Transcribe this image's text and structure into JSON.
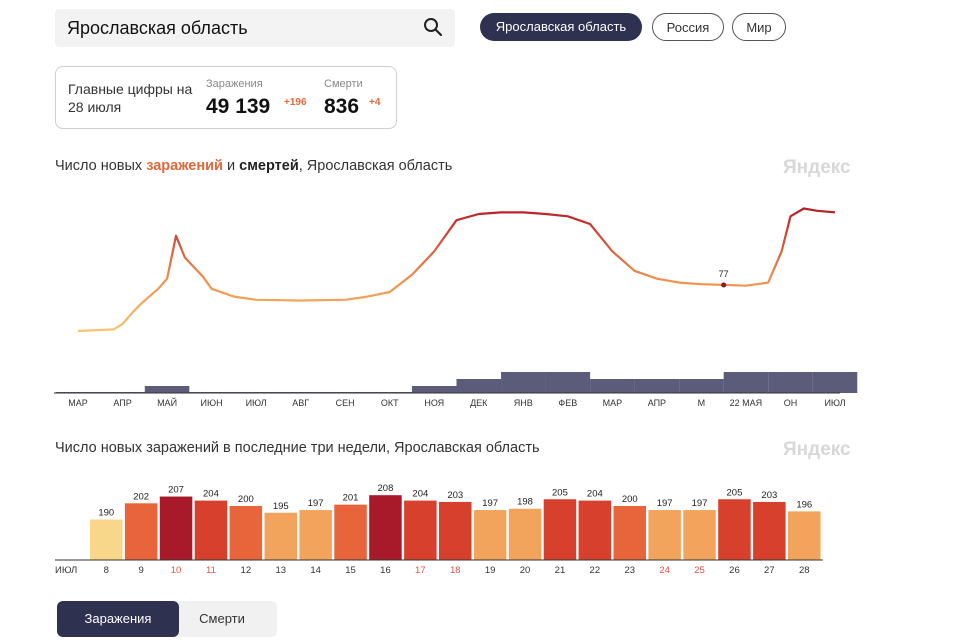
{
  "search": {
    "value": "Ярославская область"
  },
  "region_tabs": [
    {
      "label": "Ярославская область"
    },
    {
      "label": "Россия"
    },
    {
      "label": "Мир"
    }
  ],
  "summary": {
    "title": "Главные цифры на 28 июля",
    "infections_label": "Заражения",
    "infections_value": "49 139",
    "infections_delta": "+196",
    "deaths_label": "Смерти",
    "deaths_value": "836",
    "deaths_delta": "+4"
  },
  "watermark": "Яндекс",
  "chart_data": [
    {
      "type": "line",
      "title_parts": [
        "Число новых ",
        "заражений",
        " и ",
        "смертей",
        ", Ярославская область"
      ],
      "x_tick_labels": [
        "МАР",
        "АПР",
        "МАЙ",
        "ИЮН",
        "ИЮЛ",
        "АВГ",
        "СЕН",
        "ОКТ",
        "НОЯ",
        "ДЕК",
        "ЯНВ",
        "ФЕВ",
        "МАР",
        "АПР",
        "М",
        "22 МАЯ",
        "ОН",
        "ИЮЛ"
      ],
      "annotation": {
        "label": "77",
        "x_month_index": 14.5,
        "value": 77
      },
      "series": [
        {
          "name": "заражений",
          "x_month_index": [
            0.0,
            0.8,
            1.0,
            1.2,
            1.4,
            1.6,
            1.8,
            2.0,
            2.2,
            2.4,
            2.6,
            2.8,
            3.0,
            3.5,
            4.0,
            5.0,
            6.0,
            6.5,
            7.0,
            7.5,
            8.0,
            8.5,
            9.0,
            9.5,
            10.0,
            10.5,
            11.0,
            11.5,
            12.0,
            12.5,
            13.0,
            13.5,
            14.0,
            14.5,
            15.0,
            15.5,
            15.8,
            16.0,
            16.3,
            16.6,
            17.0
          ],
          "values": [
            18,
            20,
            27,
            40,
            52,
            62,
            72,
            85,
            140,
            112,
            100,
            88,
            72,
            62,
            58,
            57,
            58,
            62,
            68,
            90,
            120,
            160,
            168,
            170,
            170,
            168,
            165,
            155,
            120,
            95,
            85,
            80,
            78,
            77,
            76,
            80,
            120,
            165,
            175,
            172,
            170
          ]
        },
        {
          "name": "смертей",
          "x_month_index": [
            0,
            1,
            2,
            3,
            4,
            5,
            6,
            7,
            8,
            9,
            10,
            11,
            12,
            13,
            14,
            15,
            16,
            17
          ],
          "values": [
            0,
            0,
            1,
            0,
            0,
            0,
            0,
            0,
            1,
            2,
            3,
            3,
            2,
            2,
            2,
            3,
            3,
            3
          ]
        }
      ]
    },
    {
      "type": "bar",
      "title": "Число новых заражений в последние три недели, Ярославская область",
      "month_label": "ИЮЛ",
      "categories": [
        "8",
        "9",
        "10",
        "11",
        "12",
        "13",
        "14",
        "15",
        "16",
        "17",
        "18",
        "19",
        "20",
        "21",
        "22",
        "23",
        "24",
        "25",
        "26",
        "27",
        "28"
      ],
      "values": [
        190,
        202,
        207,
        204,
        200,
        195,
        197,
        201,
        208,
        204,
        203,
        197,
        198,
        205,
        204,
        200,
        197,
        197,
        205,
        203,
        196
      ],
      "weekend_categories": [
        "10",
        "11",
        "17",
        "18",
        "24",
        "25"
      ],
      "colors": {
        "lowest": "#f8d78a",
        "low": "#f3a45c",
        "mid": "#e8643a",
        "high": "#d8402e",
        "highest": "#a8192a",
        "weekend_text": "#e0534a"
      }
    }
  ],
  "bottom_tabs": {
    "infections": "Заражения",
    "deaths": "Смерти"
  }
}
